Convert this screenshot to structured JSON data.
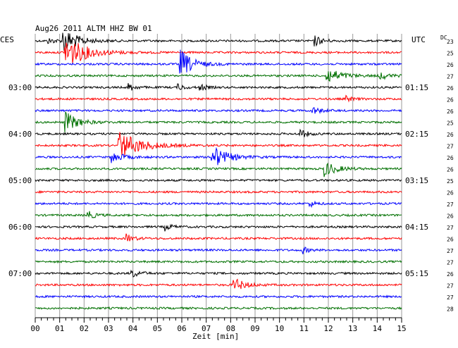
{
  "chart_data": {
    "type": "line",
    "title": "Aug26 2011   ALTM HHZ BW 01",
    "left_timezone": "CES",
    "right_timezone": "UTC",
    "corner_label": "DC",
    "xlabel": "Zeit [min]",
    "xlim": [
      0,
      15
    ],
    "x_ticks": [
      "00",
      "01",
      "02",
      "03",
      "04",
      "05",
      "06",
      "07",
      "08",
      "09",
      "10",
      "11",
      "12",
      "13",
      "14",
      "15"
    ],
    "left_time_labels": [
      {
        "row": 4,
        "label": "03:00"
      },
      {
        "row": 8,
        "label": "04:00"
      },
      {
        "row": 12,
        "label": "05:00"
      },
      {
        "row": 16,
        "label": "06:00"
      },
      {
        "row": 20,
        "label": "07:00"
      }
    ],
    "right_time_labels": [
      {
        "row": 4,
        "label": "01:15"
      },
      {
        "row": 8,
        "label": "02:15"
      },
      {
        "row": 12,
        "label": "03:15"
      },
      {
        "row": 16,
        "label": "04:15"
      },
      {
        "row": 20,
        "label": "05:15"
      }
    ],
    "dc_offsets": [
      "23",
      "25",
      "26",
      "27",
      "26",
      "26",
      "26",
      "25",
      "26",
      "27",
      "26",
      "26",
      "25",
      "26",
      "27",
      "26",
      "27",
      "26",
      "27",
      "27",
      "26",
      "27",
      "27",
      "28"
    ],
    "trace_colors": [
      "#000000",
      "#ff0000",
      "#0000ff",
      "#007000"
    ],
    "rows": 24,
    "events": [
      {
        "row": 0,
        "minute": 0.5,
        "amp": 0.6,
        "len": 0.8
      },
      {
        "row": 0,
        "minute": 1.1,
        "amp": 3.0,
        "len": 1.2
      },
      {
        "row": 0,
        "minute": 11.4,
        "amp": 1.4,
        "len": 0.6
      },
      {
        "row": 1,
        "minute": 1.2,
        "amp": 4.0,
        "len": 1.6
      },
      {
        "row": 2,
        "minute": 5.9,
        "amp": 3.5,
        "len": 1.0
      },
      {
        "row": 3,
        "minute": 11.9,
        "amp": 1.8,
        "len": 1.2
      },
      {
        "row": 3,
        "minute": 14.1,
        "amp": 0.9,
        "len": 0.7
      },
      {
        "row": 4,
        "minute": 3.8,
        "amp": 1.1,
        "len": 0.5
      },
      {
        "row": 4,
        "minute": 5.8,
        "amp": 0.8,
        "len": 0.5
      },
      {
        "row": 4,
        "minute": 6.7,
        "amp": 1.0,
        "len": 0.5
      },
      {
        "row": 5,
        "minute": 12.7,
        "amp": 0.7,
        "len": 0.5
      },
      {
        "row": 6,
        "minute": 11.3,
        "amp": 0.9,
        "len": 0.7
      },
      {
        "row": 7,
        "minute": 1.2,
        "amp": 2.5,
        "len": 1.0
      },
      {
        "row": 8,
        "minute": 10.8,
        "amp": 1.1,
        "len": 0.6
      },
      {
        "row": 9,
        "minute": 3.4,
        "amp": 3.2,
        "len": 1.8
      },
      {
        "row": 10,
        "minute": 3.1,
        "amp": 1.3,
        "len": 0.9
      },
      {
        "row": 10,
        "minute": 7.2,
        "amp": 2.8,
        "len": 1.2
      },
      {
        "row": 11,
        "minute": 11.8,
        "amp": 1.8,
        "len": 1.0
      },
      {
        "row": 14,
        "minute": 11.2,
        "amp": 0.8,
        "len": 0.5
      },
      {
        "row": 15,
        "minute": 2.1,
        "amp": 1.1,
        "len": 0.6
      },
      {
        "row": 16,
        "minute": 5.3,
        "amp": 0.8,
        "len": 0.6
      },
      {
        "row": 17,
        "minute": 3.7,
        "amp": 1.0,
        "len": 0.6
      },
      {
        "row": 18,
        "minute": 10.9,
        "amp": 0.9,
        "len": 0.5
      },
      {
        "row": 20,
        "minute": 3.9,
        "amp": 1.0,
        "len": 0.7
      },
      {
        "row": 21,
        "minute": 8.1,
        "amp": 1.6,
        "len": 0.9
      }
    ]
  }
}
